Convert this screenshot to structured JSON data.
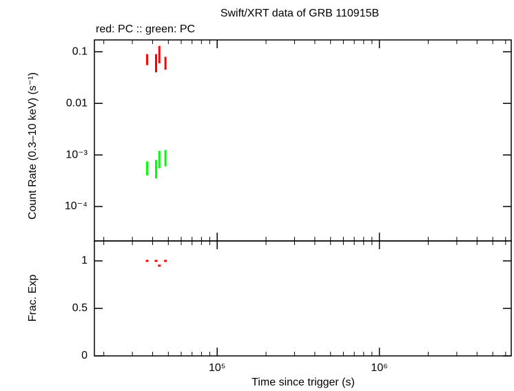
{
  "chart_data": [
    {
      "type": "errorbar",
      "title": "Swift/XRT data of GRB 110915B",
      "subtitle": "red: PC  :: green: PC",
      "y_label": "Count Rate (0.3–10 keV) (s⁻¹)",
      "log_x": true,
      "log_y": true,
      "xlim": [
        17500,
        6500000
      ],
      "ylim": [
        2.15e-05,
        0.17
      ],
      "yticks": [
        0.1,
        0.01,
        {
          "value": 0.001,
          "label": "10⁻³"
        },
        {
          "value": 0.0001,
          "label": "10⁻⁴"
        }
      ],
      "x": [
        37000,
        42000,
        44000,
        48000
      ],
      "series": [
        {
          "color": "#ff0000",
          "values": [
            0.07,
            0.06,
            0.085,
            0.06
          ],
          "lower": [
            0.055,
            0.04,
            0.06,
            0.045
          ],
          "upper": [
            0.09,
            0.09,
            0.13,
            0.08
          ]
        },
        {
          "color": "#00ff00",
          "values": [
            0.00055,
            0.0005,
            0.0008,
            0.00085
          ],
          "lower": [
            0.0004,
            0.00035,
            0.00055,
            0.0006
          ],
          "upper": [
            0.00075,
            0.0008,
            0.0012,
            0.00125
          ]
        }
      ]
    },
    {
      "type": "scatter",
      "x_label": "Time since trigger (s)",
      "y_label": "Frac. Exp",
      "log_x": true,
      "xlim": [
        17500,
        6500000
      ],
      "ylim": [
        0,
        1.21
      ],
      "xticks": [
        {
          "value": 100000,
          "label": "10⁵"
        },
        {
          "value": 1000000,
          "label": "10⁶"
        }
      ],
      "xminorticks": [
        20000,
        30000,
        40000,
        50000,
        60000,
        70000,
        80000,
        90000,
        200000,
        300000,
        400000,
        500000,
        600000,
        700000,
        800000,
        900000,
        2000000,
        3000000,
        4000000,
        5000000,
        6000000
      ],
      "yticks": [
        0,
        0.5,
        1
      ],
      "x": [
        37000,
        42000,
        44000,
        48000
      ],
      "series": [
        {
          "color": "#ff0000",
          "values": [
            1,
            1,
            0.95,
            1
          ]
        }
      ]
    }
  ]
}
